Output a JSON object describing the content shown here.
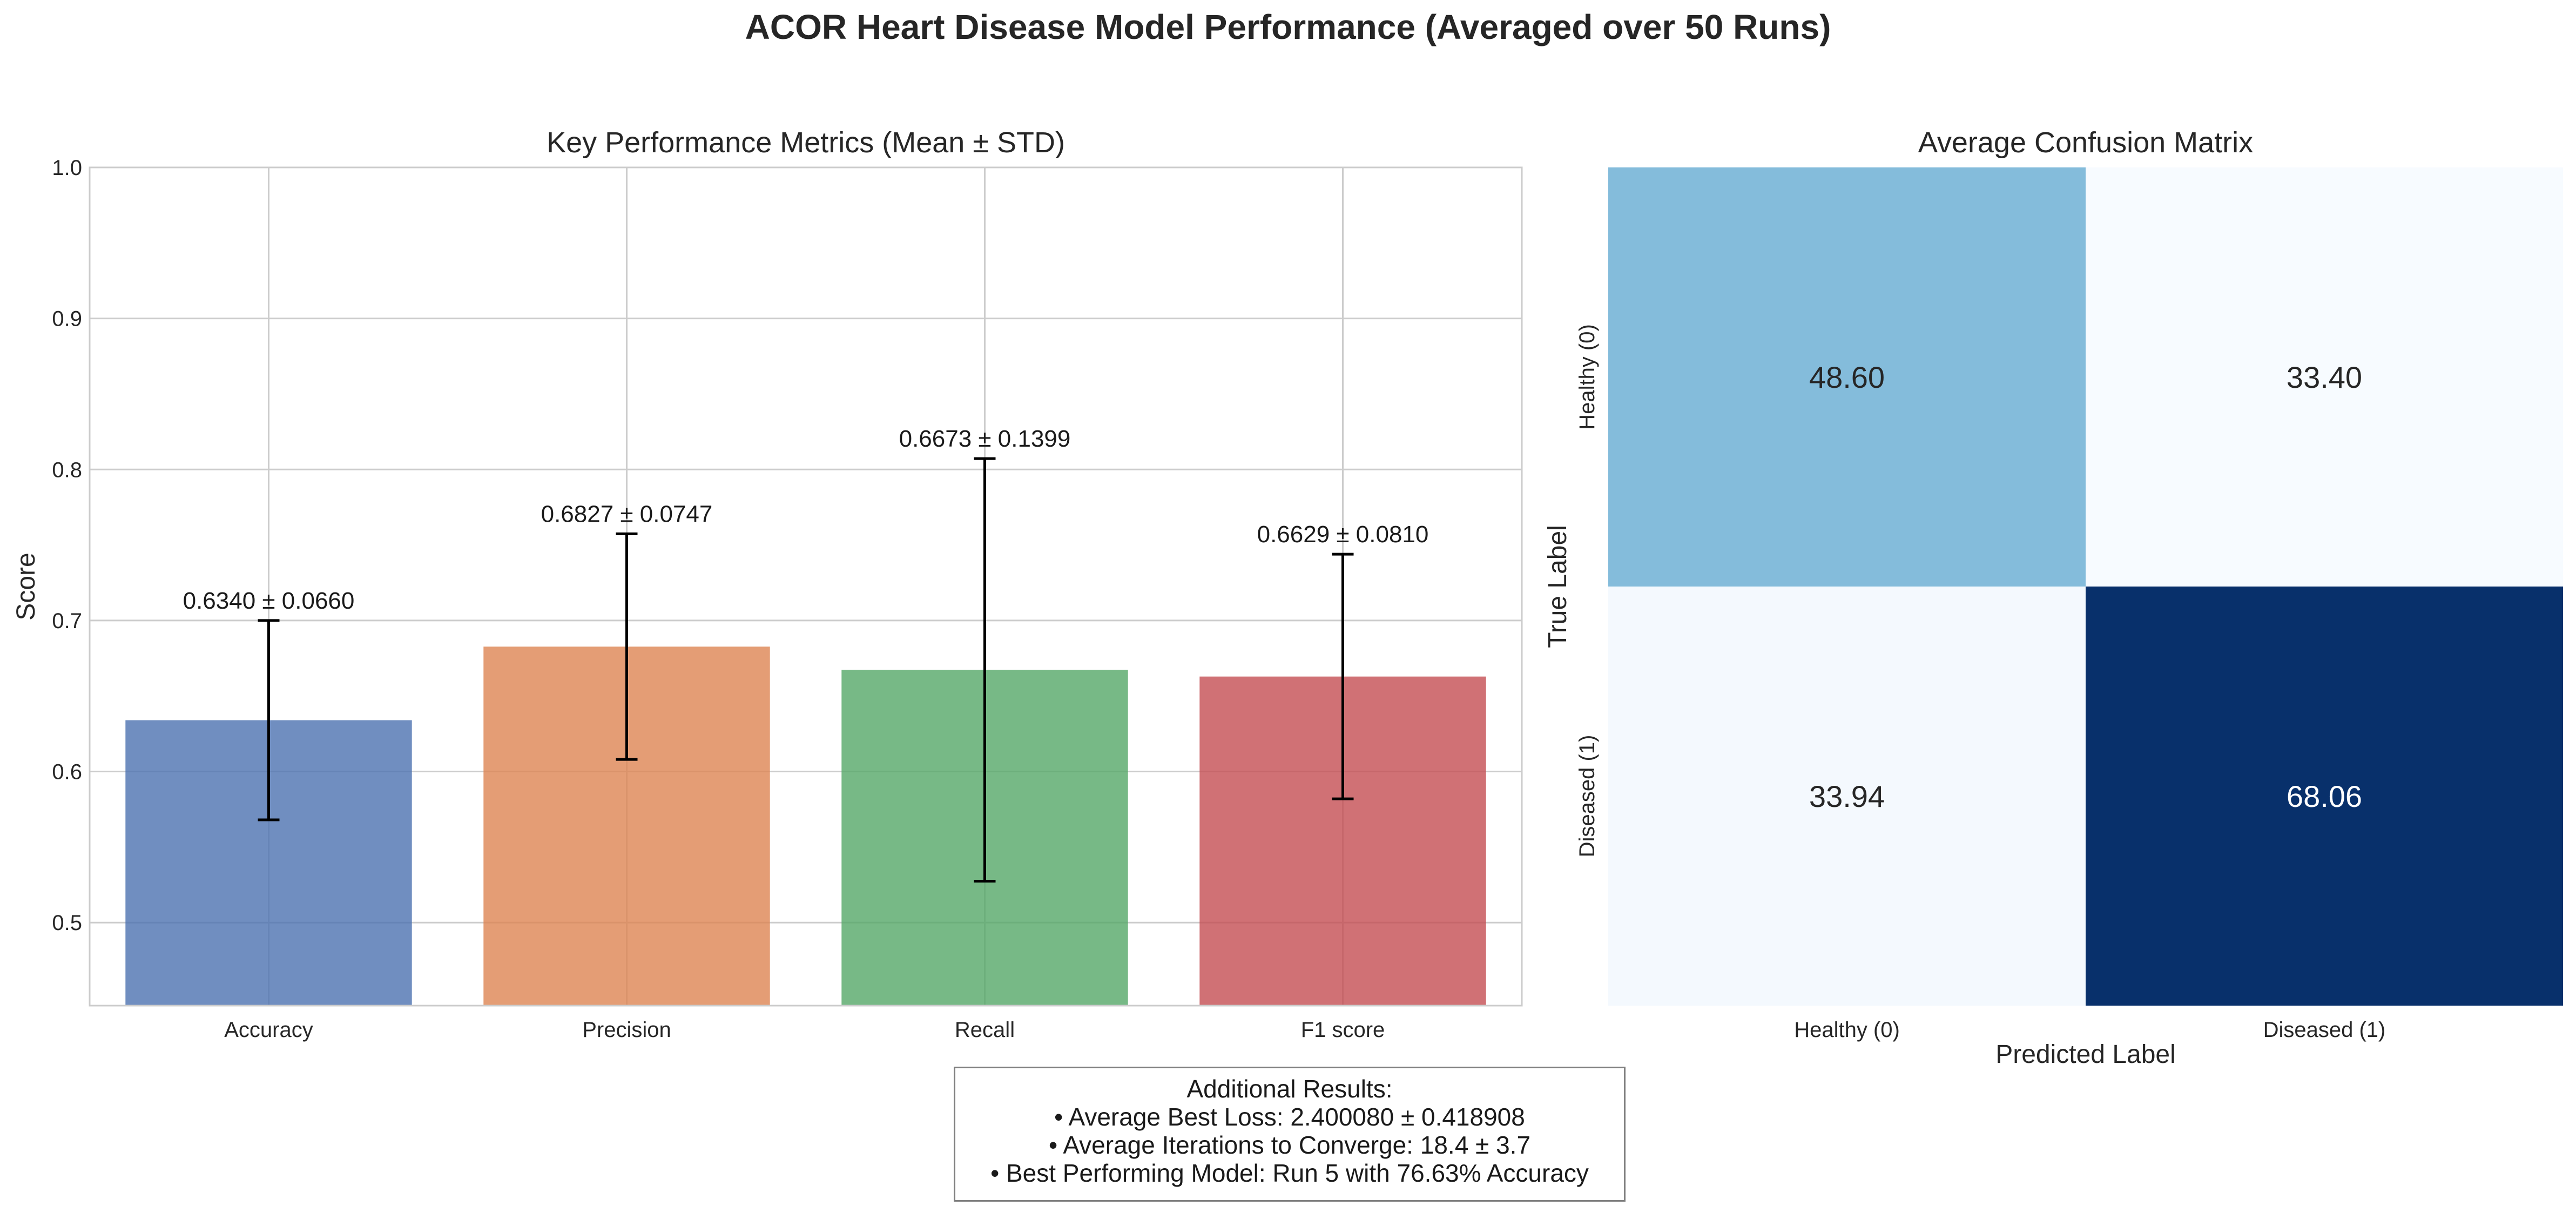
{
  "figure_title": "ACOR Heart Disease Model Performance (Averaged over 50 Runs)",
  "colors": {
    "accuracy": "#4c72b0",
    "precision": "#dd8452",
    "recall": "#55a868",
    "f1": "#c44e52",
    "cm_light": "#f7fbff",
    "cm_mid": "#84bcdb",
    "cm_dark": "#08306b"
  },
  "chart_data": [
    {
      "type": "bar",
      "title": "Key Performance Metrics (Mean ± STD)",
      "ylabel": "Score",
      "xlabel": "",
      "categories": [
        "Accuracy",
        "Precision",
        "Recall",
        "F1 score"
      ],
      "values": [
        0.634,
        0.6827,
        0.6673,
        0.6629
      ],
      "errors": [
        0.066,
        0.0747,
        0.1399,
        0.081
      ],
      "data_labels": [
        "0.6340 ± 0.0660",
        "0.6827 ± 0.0747",
        "0.6673 ± 0.1399",
        "0.6629 ± 0.0810"
      ],
      "ylim": [
        0.445,
        1.0
      ],
      "yticks": [
        "0.5",
        "0.6",
        "0.7",
        "0.8",
        "0.9",
        "1.0"
      ],
      "ytick_values": [
        0.5,
        0.6,
        0.7,
        0.8,
        0.9,
        1.0
      ],
      "grid": true
    },
    {
      "type": "heatmap",
      "title": "Average Confusion Matrix",
      "xlabel": "Predicted Label",
      "ylabel": "True Label",
      "x_categories": [
        "Healthy (0)",
        "Diseased (1)"
      ],
      "y_categories": [
        "Healthy (0)",
        "Diseased (1)"
      ],
      "values": [
        [
          48.6,
          33.4
        ],
        [
          33.94,
          68.06
        ]
      ],
      "value_labels": [
        [
          "48.60",
          "33.40"
        ],
        [
          "33.94",
          "68.06"
        ]
      ],
      "colormap": "Blues",
      "colorbar": false
    }
  ],
  "summary": {
    "heading": "Additional Results:",
    "lines": [
      "• Average Best Loss: 2.400080 ± 0.418908",
      "• Average Iterations to Converge: 18.4 ± 3.7",
      "• Best Performing Model: Run 5 with 76.63% Accuracy"
    ]
  }
}
